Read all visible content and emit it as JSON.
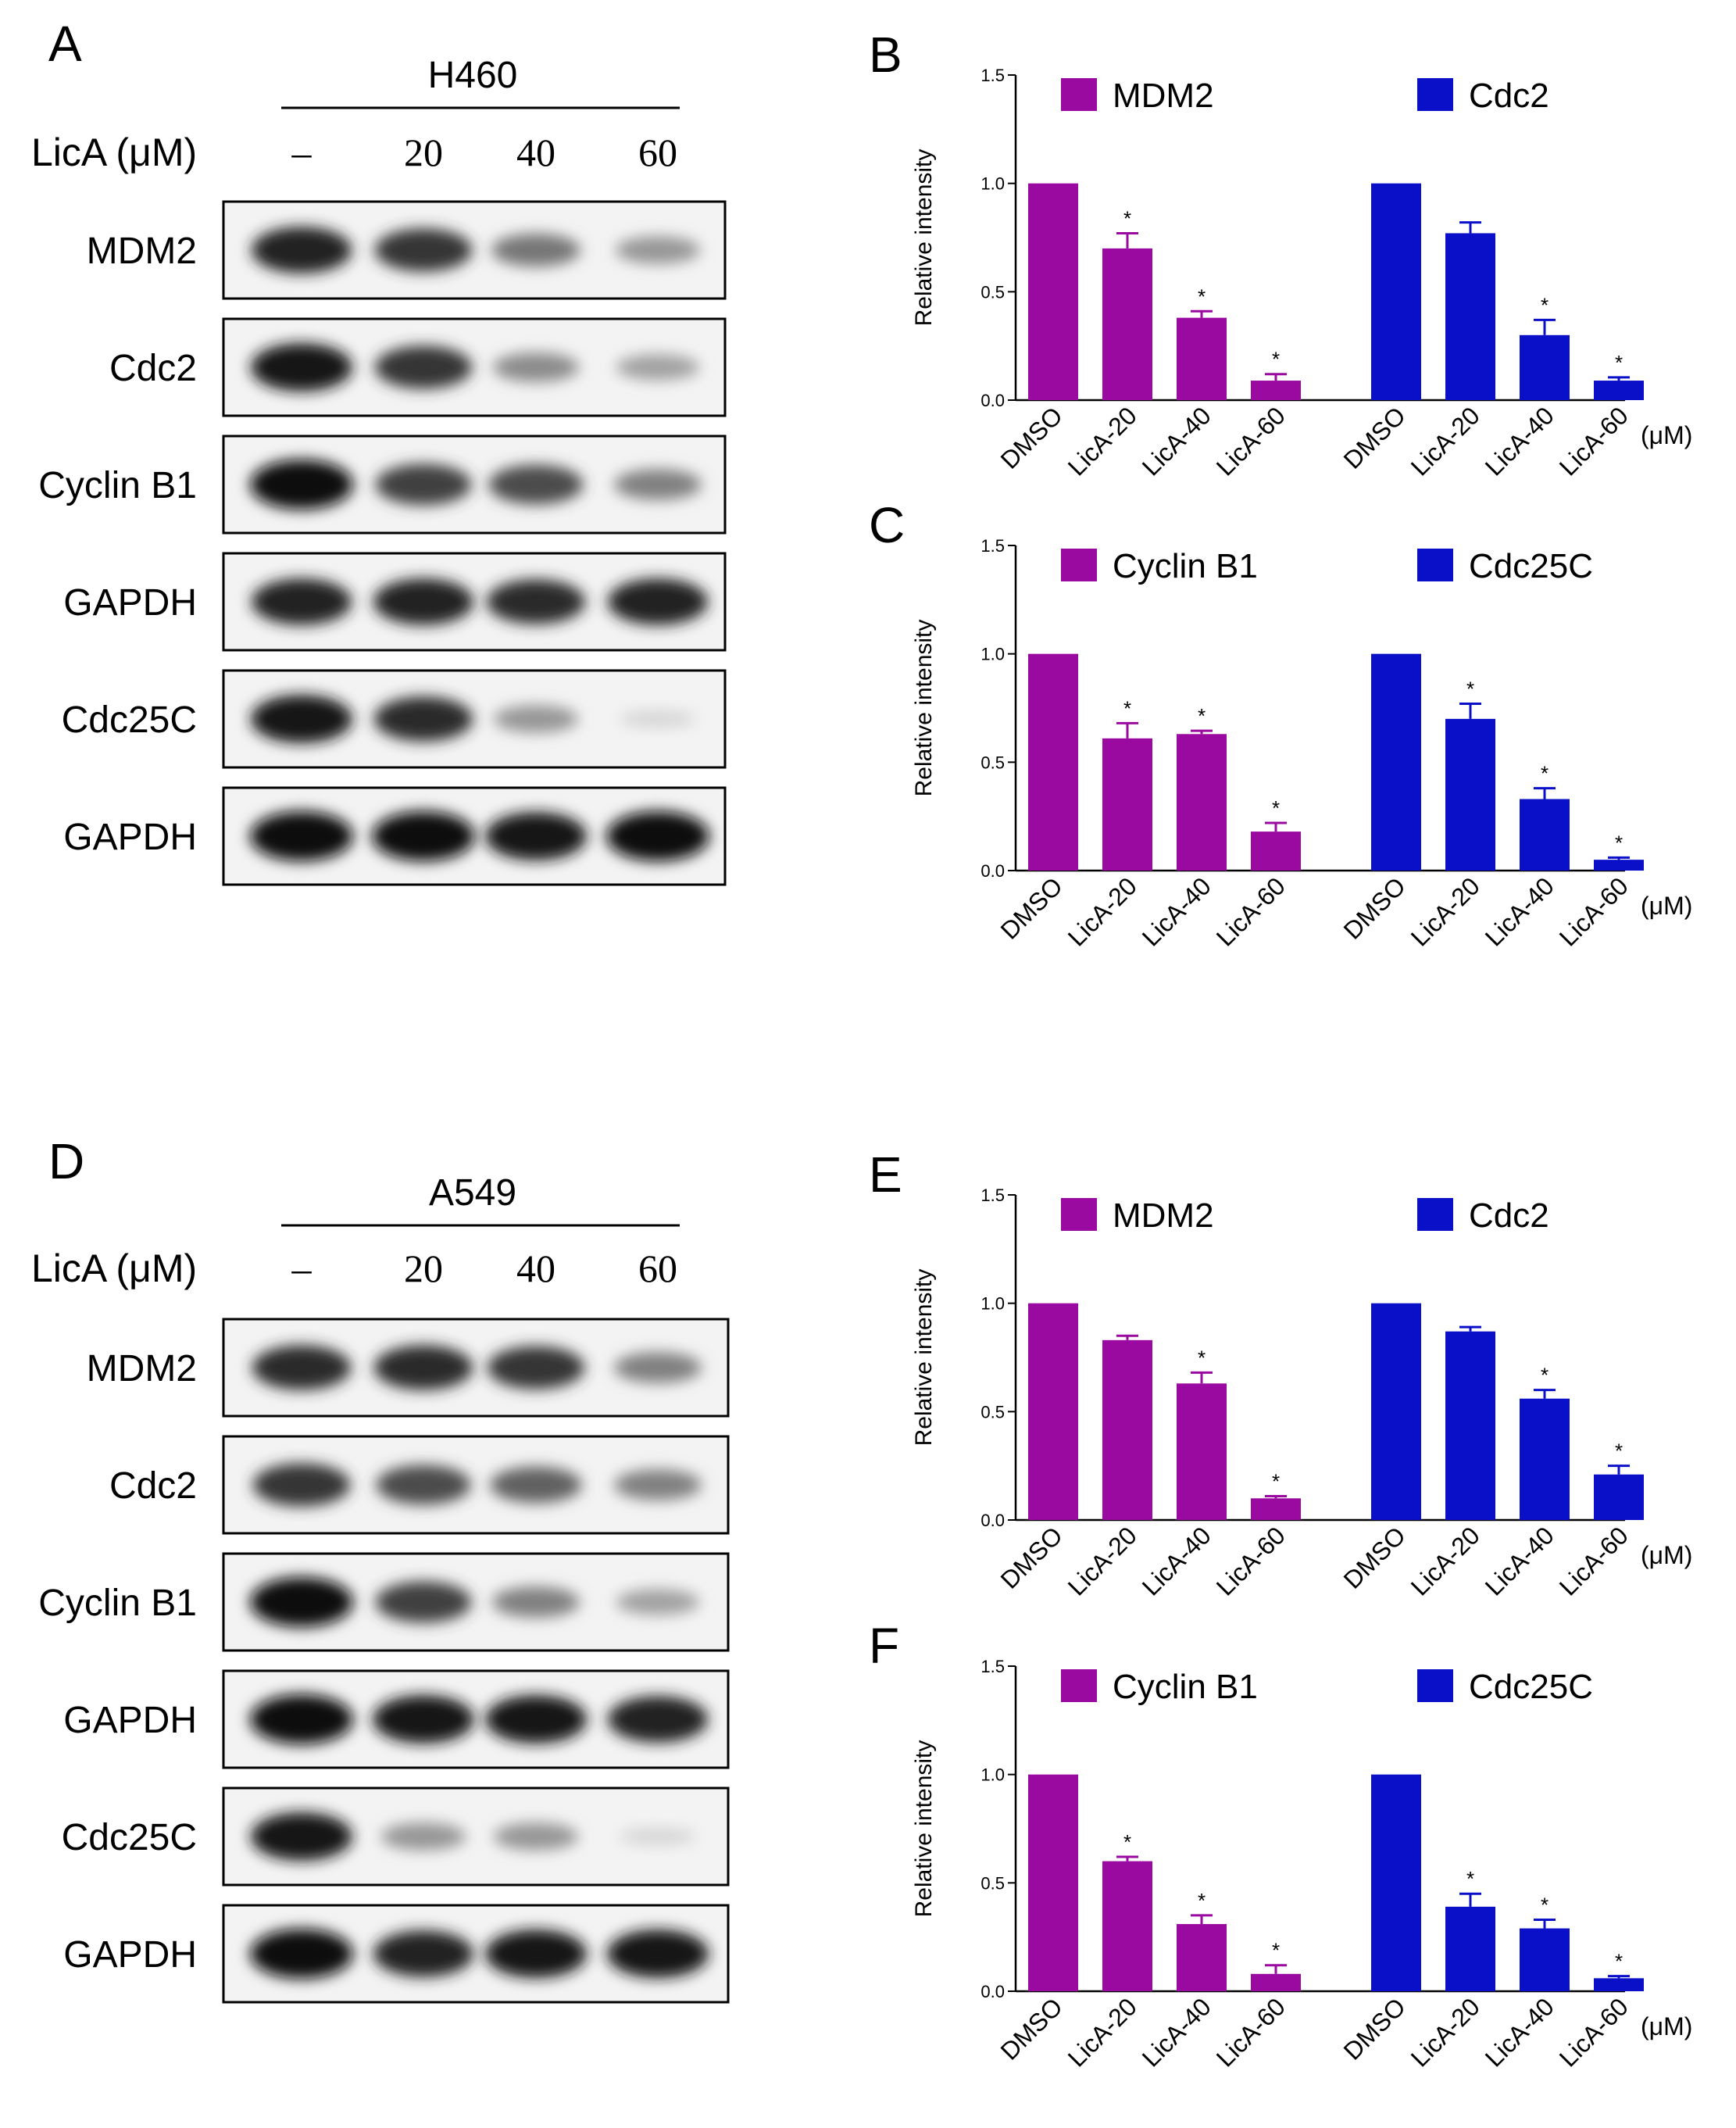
{
  "colors": {
    "purple": "#9b0aa0",
    "blue": "#0a10c8",
    "axis": "#000000"
  },
  "blots": [
    {
      "letter": "A",
      "cell_line": "H460",
      "lane_header_label": "LicA (μM)",
      "lanes": [
        "–",
        "20",
        "40",
        "60"
      ],
      "bands": [
        {
          "label": "MDM2",
          "intensity": [
            0.9,
            0.8,
            0.5,
            0.35
          ]
        },
        {
          "label": "Cdc2",
          "intensity": [
            0.95,
            0.8,
            0.4,
            0.3
          ]
        },
        {
          "label": "Cyclin B1",
          "intensity": [
            1.0,
            0.75,
            0.7,
            0.45
          ]
        },
        {
          "label": "GAPDH",
          "intensity": [
            0.9,
            0.9,
            0.85,
            0.9
          ]
        },
        {
          "label": "Cdc25C",
          "intensity": [
            0.95,
            0.85,
            0.35,
            0.05
          ]
        },
        {
          "label": "GAPDH",
          "intensity": [
            1.0,
            1.0,
            0.95,
            1.0
          ]
        }
      ]
    },
    {
      "letter": "D",
      "cell_line": "A549",
      "lane_header_label": "LicA (μM)",
      "lanes": [
        "–",
        "20",
        "40",
        "60"
      ],
      "bands": [
        {
          "label": "MDM2",
          "intensity": [
            0.85,
            0.85,
            0.8,
            0.45
          ]
        },
        {
          "label": "Cdc2",
          "intensity": [
            0.8,
            0.7,
            0.6,
            0.45
          ]
        },
        {
          "label": "Cyclin B1",
          "intensity": [
            1.0,
            0.75,
            0.45,
            0.3
          ]
        },
        {
          "label": "GAPDH",
          "intensity": [
            1.0,
            0.95,
            0.95,
            0.9
          ]
        },
        {
          "label": "Cdc25C",
          "intensity": [
            0.95,
            0.35,
            0.35,
            0.05
          ]
        },
        {
          "label": "GAPDH",
          "intensity": [
            1.0,
            0.9,
            0.95,
            0.95
          ]
        }
      ]
    }
  ],
  "chart_data": [
    {
      "letter": "B",
      "type": "bar",
      "ylabel": "Relative intensity",
      "ylim": [
        0,
        1.5
      ],
      "yticks": [
        "0.0",
        "0.5",
        "1.0",
        "1.5"
      ],
      "unit_label": "(μM)",
      "categories": [
        "DMSO",
        "LicA-20",
        "LicA-40",
        "LicA-60"
      ],
      "series": [
        {
          "name": "MDM2",
          "color": "#9b0aa0",
          "values": [
            1.0,
            0.7,
            0.38,
            0.09
          ],
          "errors": [
            0,
            0.07,
            0.03,
            0.03
          ],
          "sig": [
            "",
            "*",
            "*",
            "*"
          ]
        },
        {
          "name": "Cdc2",
          "color": "#0a10c8",
          "values": [
            1.0,
            0.77,
            0.3,
            0.09
          ],
          "errors": [
            0,
            0.05,
            0.07,
            0.015
          ],
          "sig": [
            "",
            "",
            "*",
            "*"
          ]
        }
      ]
    },
    {
      "letter": "C",
      "type": "bar",
      "ylabel": "Relative intensity",
      "ylim": [
        0,
        1.5
      ],
      "yticks": [
        "0.0",
        "0.5",
        "1.0",
        "1.5"
      ],
      "unit_label": "(μM)",
      "categories": [
        "DMSO",
        "LicA-20",
        "LicA-40",
        "LicA-60"
      ],
      "series": [
        {
          "name": "Cyclin B1",
          "color": "#9b0aa0",
          "values": [
            1.0,
            0.61,
            0.63,
            0.18
          ],
          "errors": [
            0,
            0.07,
            0.015,
            0.04
          ],
          "sig": [
            "",
            "*",
            "*",
            "*"
          ]
        },
        {
          "name": "Cdc25C",
          "color": "#0a10c8",
          "values": [
            1.0,
            0.7,
            0.33,
            0.05
          ],
          "errors": [
            0,
            0.07,
            0.05,
            0.01
          ],
          "sig": [
            "",
            "*",
            "*",
            "*"
          ]
        }
      ]
    },
    {
      "letter": "E",
      "type": "bar",
      "ylabel": "Relative intensity",
      "ylim": [
        0,
        1.5
      ],
      "yticks": [
        "0.0",
        "0.5",
        "1.0",
        "1.5"
      ],
      "unit_label": "(μM)",
      "categories": [
        "DMSO",
        "LicA-20",
        "LicA-40",
        "LicA-60"
      ],
      "series": [
        {
          "name": "MDM2",
          "color": "#9b0aa0",
          "values": [
            1.0,
            0.83,
            0.63,
            0.1
          ],
          "errors": [
            0,
            0.02,
            0.05,
            0.01
          ],
          "sig": [
            "",
            "",
            "*",
            "*"
          ]
        },
        {
          "name": "Cdc2",
          "color": "#0a10c8",
          "values": [
            1.0,
            0.87,
            0.56,
            0.21
          ],
          "errors": [
            0,
            0.02,
            0.04,
            0.04
          ],
          "sig": [
            "",
            "",
            "*",
            "*"
          ]
        }
      ]
    },
    {
      "letter": "F",
      "type": "bar",
      "ylabel": "Relative intensity",
      "ylim": [
        0,
        1.5
      ],
      "yticks": [
        "0.0",
        "0.5",
        "1.0",
        "1.5"
      ],
      "unit_label": "(μM)",
      "categories": [
        "DMSO",
        "LicA-20",
        "LicA-40",
        "LicA-60"
      ],
      "series": [
        {
          "name": "Cyclin B1",
          "color": "#9b0aa0",
          "values": [
            1.0,
            0.6,
            0.31,
            0.08
          ],
          "errors": [
            0,
            0.02,
            0.04,
            0.04
          ],
          "sig": [
            "",
            "*",
            "*",
            "*"
          ]
        },
        {
          "name": "Cdc25C",
          "color": "#0a10c8",
          "values": [
            1.0,
            0.39,
            0.29,
            0.06
          ],
          "errors": [
            0,
            0.06,
            0.04,
            0.01
          ],
          "sig": [
            "",
            "*",
            "*",
            "*"
          ]
        }
      ]
    }
  ]
}
